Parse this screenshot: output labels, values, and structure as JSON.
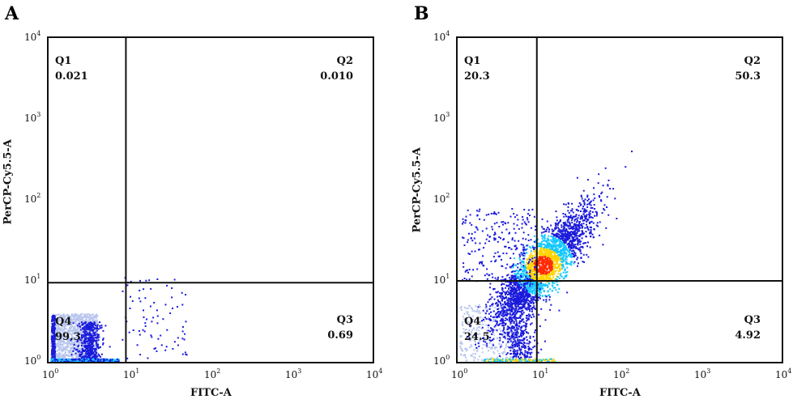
{
  "chart_data": [
    {
      "panel": "A",
      "type": "scatter",
      "xlabel": "FITC-A",
      "ylabel": "PerCP-Cy5.5-A",
      "xscale": "log",
      "yscale": "log",
      "xlim": [
        1,
        10000
      ],
      "ylim": [
        1,
        10000
      ],
      "x_ticks": [
        "10^0",
        "10^1",
        "10^2",
        "10^3",
        "10^4"
      ],
      "y_ticks": [
        "10^0",
        "10^1",
        "10^2",
        "10^3",
        "10^4"
      ],
      "gate": {
        "x": 9,
        "y": 9.5
      },
      "quadrants": [
        {
          "label": "Q1",
          "value": "0.021"
        },
        {
          "label": "Q2",
          "value": "0.010"
        },
        {
          "label": "Q3",
          "value": "0.69"
        },
        {
          "label": "Q4",
          "value": "99.3"
        }
      ]
    },
    {
      "panel": "B",
      "type": "scatter",
      "xlabel": "FITC-A",
      "ylabel": "PerCP-Cy5.5-A",
      "xscale": "log",
      "yscale": "log",
      "xlim": [
        1,
        10000
      ],
      "ylim": [
        1,
        10000
      ],
      "x_ticks": [
        "10^0",
        "10^1",
        "10^2",
        "10^3",
        "10^4"
      ],
      "y_ticks": [
        "10^0",
        "10^1",
        "10^2",
        "10^3",
        "10^4"
      ],
      "gate": {
        "x": 9.5,
        "y": 10
      },
      "quadrants": [
        {
          "label": "Q1",
          "value": "20.3"
        },
        {
          "label": "Q2",
          "value": "50.3"
        },
        {
          "label": "Q3",
          "value": "4.92"
        },
        {
          "label": "Q4",
          "value": "24.5"
        }
      ]
    }
  ],
  "panels": [
    {
      "letter": "A"
    },
    {
      "letter": "B"
    }
  ],
  "colors": {
    "density_low": "#1a1adb",
    "density_mid": "#14c8ff",
    "density_high": "#ffd400",
    "density_peak": "#ff2a00",
    "light_cloud": "#b9c6ee",
    "gate_line": "#111111"
  }
}
